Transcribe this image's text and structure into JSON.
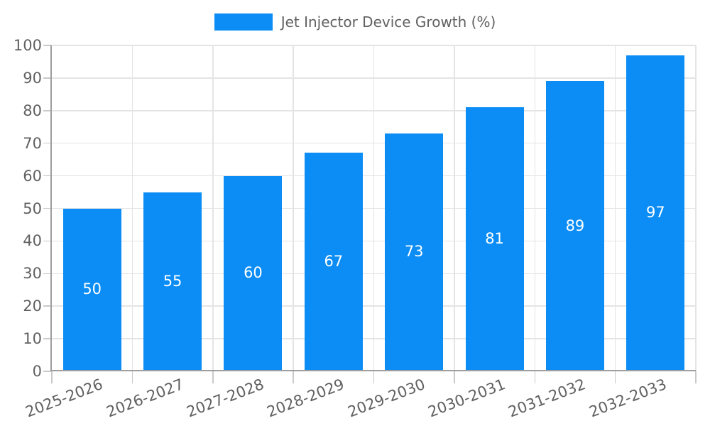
{
  "chart_data": {
    "type": "bar",
    "title": "",
    "xlabel": "",
    "ylabel": "",
    "categories": [
      "2025-2026",
      "2026-2027",
      "2027-2028",
      "2028-2029",
      "2029-2030",
      "2030-2031",
      "2031-2032",
      "2032-2033"
    ],
    "series": [
      {
        "name": "Jet Injector Device Growth (%)",
        "values": [
          50,
          55,
          60,
          67,
          73,
          81,
          89,
          97
        ]
      }
    ],
    "ylim": [
      0,
      100
    ],
    "yticks": [
      0,
      10,
      20,
      30,
      40,
      50,
      60,
      70,
      80,
      90,
      100
    ],
    "grid": true,
    "bar_labels_inside": true,
    "xtick_rotation_deg": -21,
    "legend": {
      "position": "top-center",
      "entries": [
        "Jet Injector Device Growth (%)"
      ]
    },
    "colors": {
      "bar": "#0b8df5",
      "bar_label": "#ffffff",
      "axis": "#9e9e9e",
      "grid": "#e4e4e4",
      "tick": "#c9c9c9",
      "text": "#616161",
      "background": "#ffffff"
    }
  }
}
